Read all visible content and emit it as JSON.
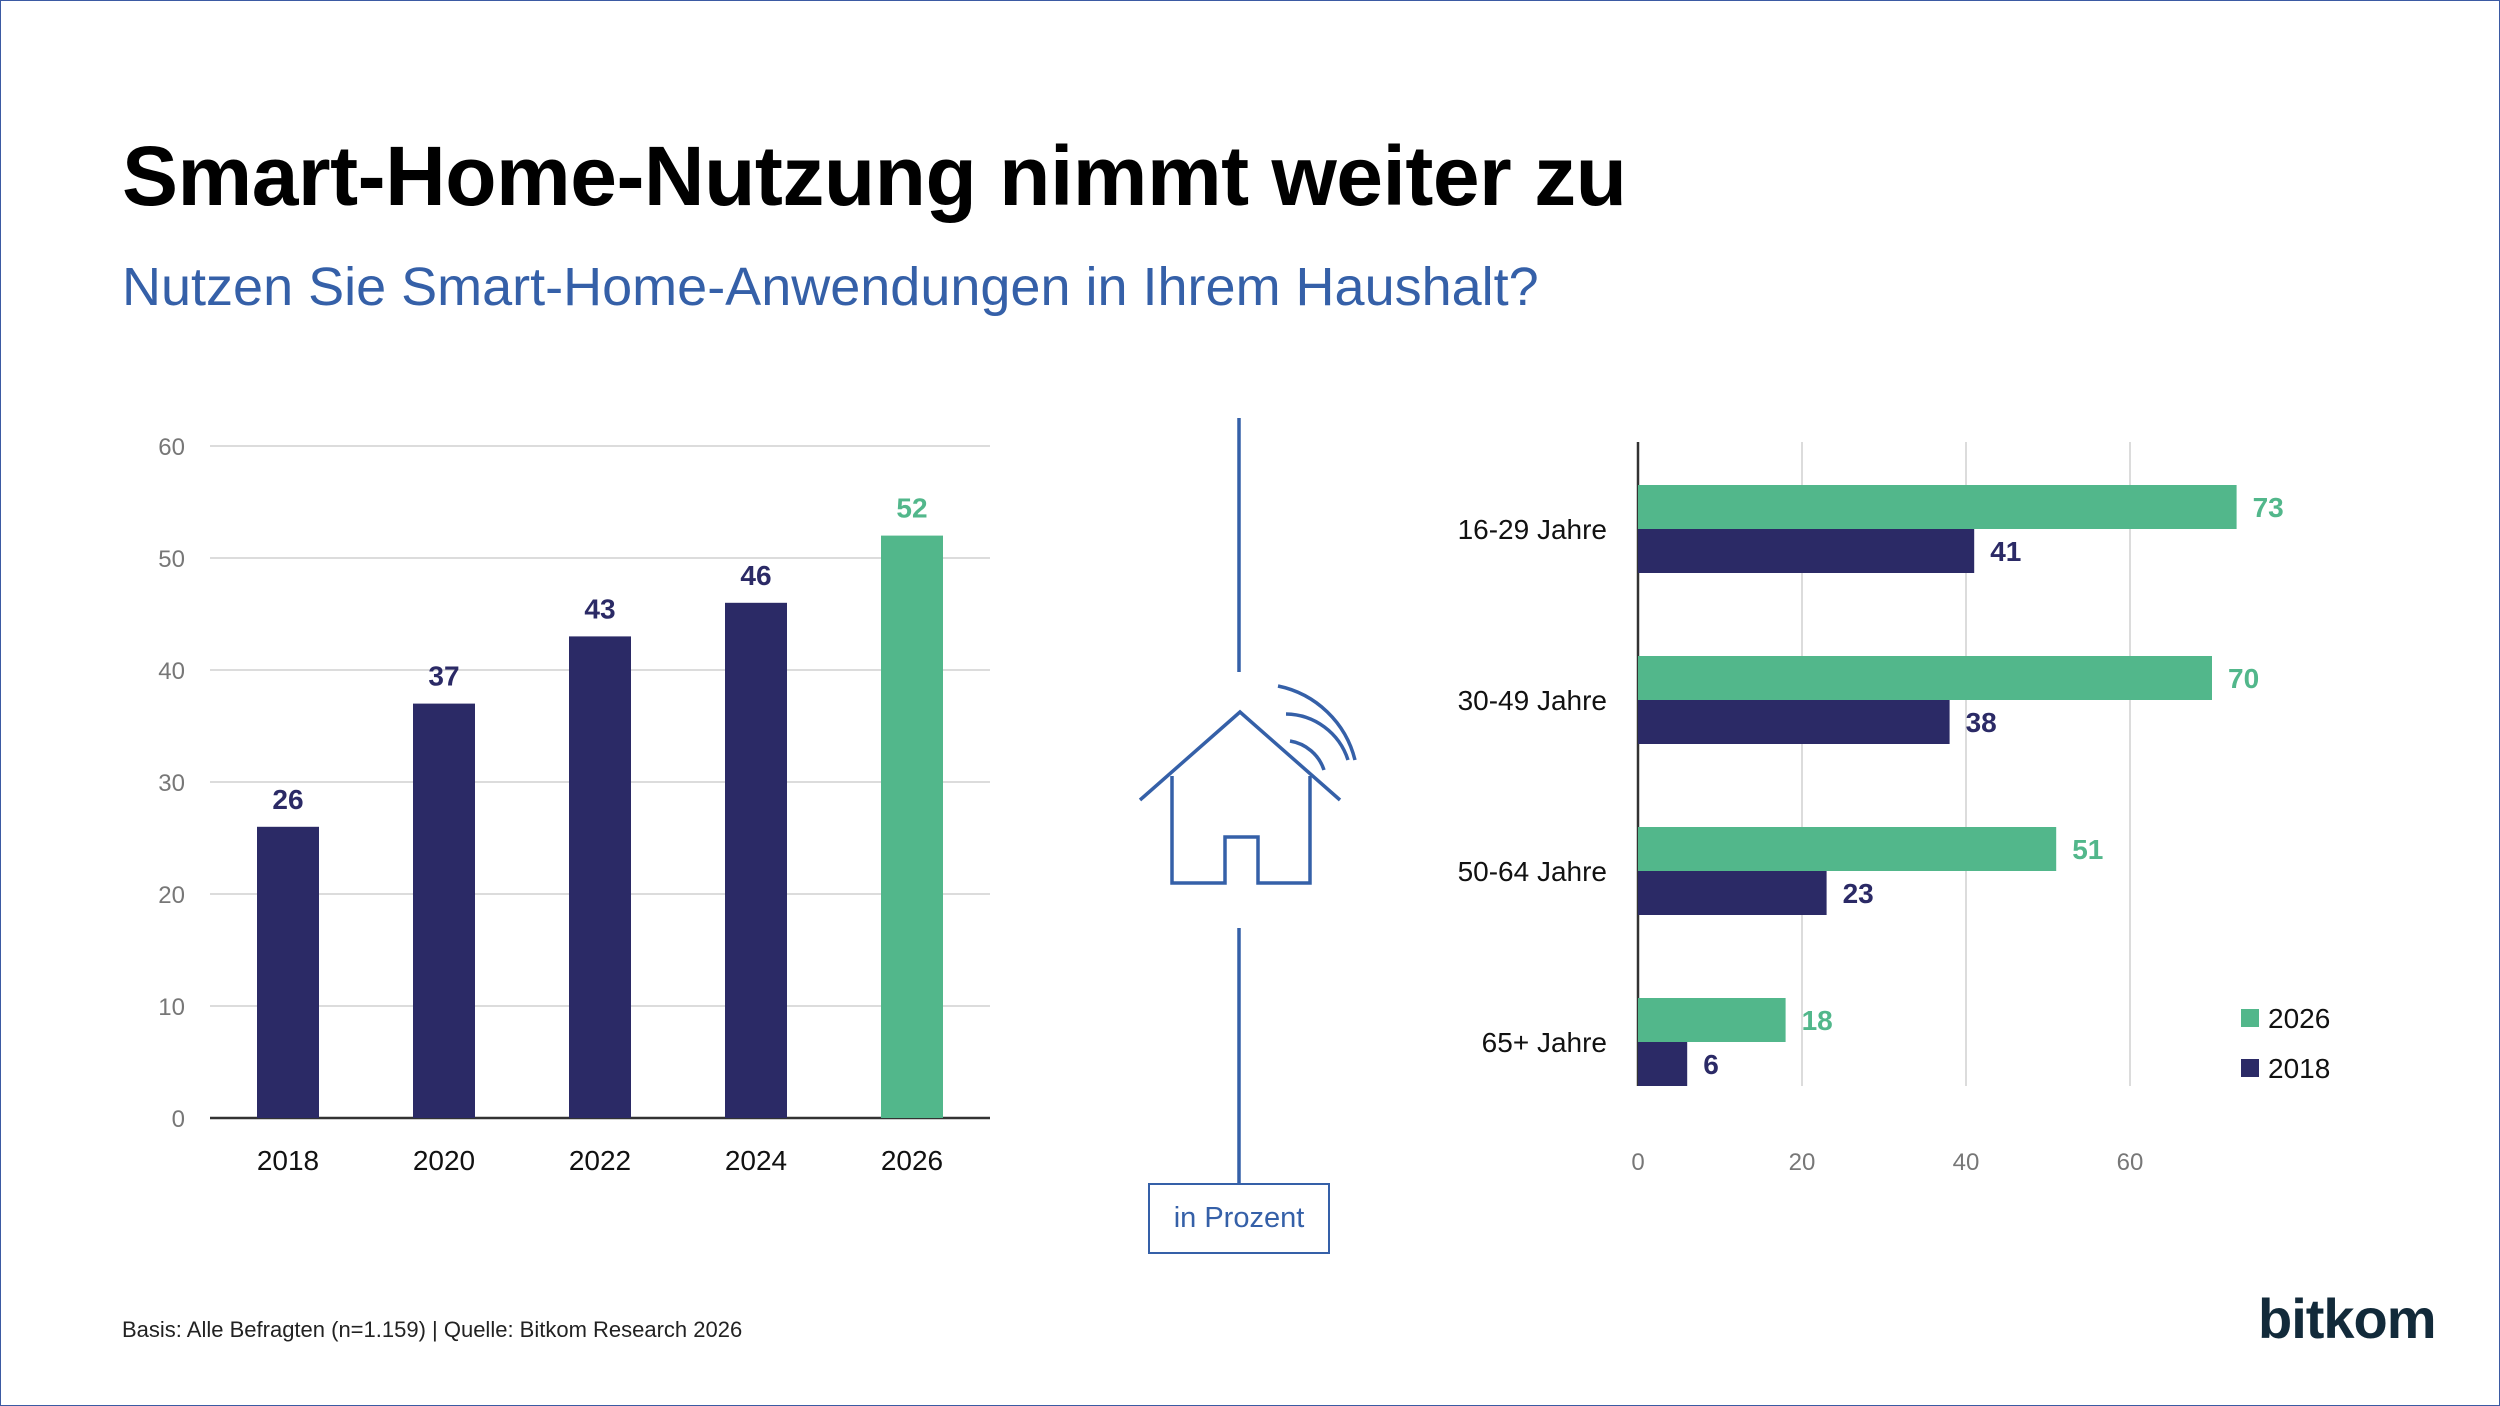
{
  "title": "Smart-Home-Nutzung nimmt weiter zu",
  "subtitle": "Nutzen Sie Smart-Home-Anwendungen in Ihrem Haushalt?",
  "unit_label": "in Prozent",
  "footer": "Basis: Alle Befragten (n=1.159) | Quelle: Bitkom Research 2026",
  "logo": "bitkom",
  "icons": [
    "smart-home-icon"
  ],
  "colors": {
    "navy": "#2b2a66",
    "green": "#52b78b",
    "accent_blue": "#3560a8"
  },
  "chart_data": [
    {
      "type": "bar",
      "orientation": "vertical",
      "categories": [
        "2018",
        "2020",
        "2022",
        "2024",
        "2026"
      ],
      "values": [
        26,
        37,
        43,
        46,
        52
      ],
      "highlight_index": 4,
      "ylim": [
        0,
        60
      ],
      "yticks": [
        "0",
        "10",
        "20",
        "30",
        "40",
        "50",
        "60"
      ],
      "grid": true
    },
    {
      "type": "bar",
      "orientation": "horizontal",
      "categories": [
        "16-29 Jahre",
        "30-49 Jahre",
        "50-64 Jahre",
        "65+ Jahre"
      ],
      "series": [
        {
          "name": "2026",
          "values": [
            73,
            70,
            51,
            18
          ]
        },
        {
          "name": "2018",
          "values": [
            41,
            38,
            23,
            6
          ]
        }
      ],
      "xlim": [
        0,
        80
      ],
      "xticks": [
        "0",
        "20",
        "40",
        "60"
      ],
      "grid": true,
      "legend": "bottom-right"
    }
  ]
}
